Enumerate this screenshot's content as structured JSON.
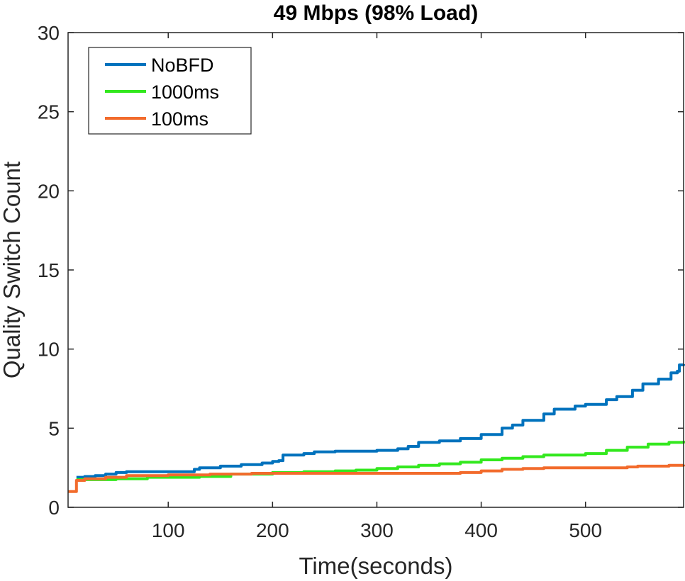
{
  "chart_data": {
    "type": "line",
    "title": "49 Mbps (98% Load)",
    "xlabel": "Time(seconds)",
    "ylabel": "Quality Switch Count",
    "xlim": [
      4,
      594
    ],
    "ylim": [
      0,
      30
    ],
    "xticks": [
      100,
      200,
      300,
      400,
      500
    ],
    "yticks": [
      0,
      5,
      10,
      15,
      20,
      25,
      30
    ],
    "grid": false,
    "legend_position": "top-left",
    "series": [
      {
        "name": "NoBFD",
        "color": "#0072BD",
        "points": [
          [
            12,
            1.9
          ],
          [
            20,
            1.95
          ],
          [
            30,
            2.0
          ],
          [
            40,
            2.1
          ],
          [
            50,
            2.2
          ],
          [
            60,
            2.25
          ],
          [
            80,
            2.25
          ],
          [
            100,
            2.25
          ],
          [
            118,
            2.25
          ],
          [
            125,
            2.4
          ],
          [
            130,
            2.5
          ],
          [
            150,
            2.6
          ],
          [
            170,
            2.7
          ],
          [
            190,
            2.8
          ],
          [
            200,
            2.9
          ],
          [
            206,
            2.95
          ],
          [
            210,
            3.3
          ],
          [
            230,
            3.4
          ],
          [
            240,
            3.5
          ],
          [
            260,
            3.55
          ],
          [
            280,
            3.55
          ],
          [
            300,
            3.6
          ],
          [
            320,
            3.7
          ],
          [
            330,
            3.85
          ],
          [
            340,
            4.1
          ],
          [
            360,
            4.2
          ],
          [
            380,
            4.35
          ],
          [
            400,
            4.6
          ],
          [
            420,
            5.0
          ],
          [
            430,
            5.2
          ],
          [
            440,
            5.5
          ],
          [
            460,
            5.9
          ],
          [
            470,
            6.2
          ],
          [
            490,
            6.4
          ],
          [
            500,
            6.5
          ],
          [
            520,
            6.8
          ],
          [
            530,
            7.0
          ],
          [
            545,
            7.4
          ],
          [
            555,
            7.8
          ],
          [
            570,
            8.1
          ],
          [
            582,
            8.5
          ],
          [
            588,
            8.6
          ],
          [
            590,
            9.0
          ],
          [
            594,
            9.05
          ]
        ]
      },
      {
        "name": "1000ms",
        "color": "#33E81E",
        "points": [
          [
            12,
            1.75
          ],
          [
            30,
            1.75
          ],
          [
            50,
            1.8
          ],
          [
            80,
            1.9
          ],
          [
            100,
            1.9
          ],
          [
            130,
            1.95
          ],
          [
            160,
            2.1
          ],
          [
            200,
            2.2
          ],
          [
            230,
            2.25
          ],
          [
            260,
            2.3
          ],
          [
            280,
            2.35
          ],
          [
            300,
            2.45
          ],
          [
            320,
            2.55
          ],
          [
            340,
            2.65
          ],
          [
            360,
            2.75
          ],
          [
            380,
            2.85
          ],
          [
            400,
            3.0
          ],
          [
            420,
            3.1
          ],
          [
            440,
            3.2
          ],
          [
            460,
            3.3
          ],
          [
            480,
            3.3
          ],
          [
            500,
            3.4
          ],
          [
            520,
            3.6
          ],
          [
            540,
            3.8
          ],
          [
            560,
            4.0
          ],
          [
            580,
            4.1
          ],
          [
            594,
            4.2
          ]
        ]
      },
      {
        "name": "100ms",
        "color": "#F26B2C",
        "points": [
          [
            4,
            1.0
          ],
          [
            11,
            1.0
          ],
          [
            12,
            1.7
          ],
          [
            20,
            1.8
          ],
          [
            40,
            1.9
          ],
          [
            60,
            2.0
          ],
          [
            100,
            2.05
          ],
          [
            140,
            2.1
          ],
          [
            180,
            2.15
          ],
          [
            200,
            2.15
          ],
          [
            240,
            2.15
          ],
          [
            300,
            2.15
          ],
          [
            340,
            2.15
          ],
          [
            370,
            2.15
          ],
          [
            380,
            2.2
          ],
          [
            400,
            2.3
          ],
          [
            420,
            2.4
          ],
          [
            440,
            2.45
          ],
          [
            460,
            2.5
          ],
          [
            500,
            2.5
          ],
          [
            540,
            2.55
          ],
          [
            550,
            2.6
          ],
          [
            580,
            2.65
          ],
          [
            594,
            2.7
          ]
        ]
      }
    ]
  }
}
